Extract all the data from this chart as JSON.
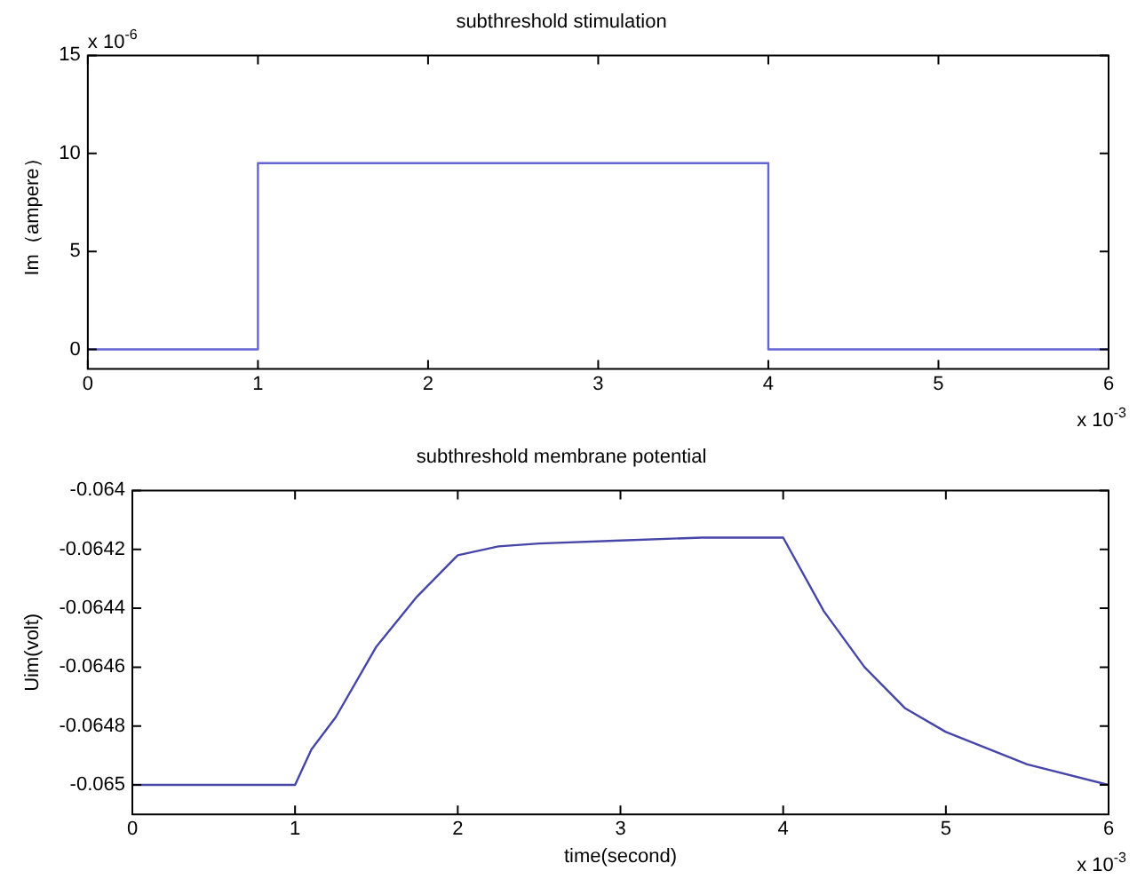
{
  "chart_data": [
    {
      "type": "step",
      "title": "subthreshold stimulation",
      "ylabel": "Im（ampere）",
      "annotations": [
        "x 10$^{-6}$",
        "x 10$^{-3}$"
      ],
      "x": [
        0,
        1,
        4,
        6
      ],
      "series": [
        {
          "color": "#6464d2",
          "values": [
            0,
            9.5,
            0,
            0
          ]
        }
      ],
      "xlim": [
        0,
        6
      ],
      "xticks": [
        0,
        1,
        2,
        3,
        4,
        5,
        6
      ],
      "ylim": [
        -1,
        15
      ],
      "yticks": [
        0,
        5,
        10,
        15
      ],
      "grid": false,
      "legend": false
    },
    {
      "type": "line",
      "title": "subthreshold membrane potential",
      "xlabel": "time(second)",
      "ylabel": "Uim(volt)",
      "annotations": [
        "x 10$^{-3}$"
      ],
      "x": [
        0,
        1,
        1.1,
        1.25,
        1.5,
        1.75,
        2,
        2.25,
        2.5,
        3,
        3.5,
        4,
        4.25,
        4.5,
        4.75,
        5,
        5.5,
        6
      ],
      "series": [
        {
          "color": "#4646a8",
          "values": [
            -0.065,
            -0.065,
            -0.06488,
            -0.06477,
            -0.06453,
            -0.06436,
            -0.06422,
            -0.06419,
            -0.06418,
            -0.06417,
            -0.06416,
            -0.06416,
            -0.06441,
            -0.0646,
            -0.06474,
            -0.06482,
            -0.06493,
            -0.065
          ]
        }
      ],
      "xlim": [
        0,
        6
      ],
      "xticks": [
        0,
        1,
        2,
        3,
        4,
        5,
        6
      ],
      "ylim": [
        -0.0651,
        -0.064
      ],
      "yticks": [
        -0.065,
        -0.0648,
        -0.0646,
        -0.0644,
        -0.0642,
        -0.064
      ],
      "grid": false,
      "legend": false
    }
  ]
}
